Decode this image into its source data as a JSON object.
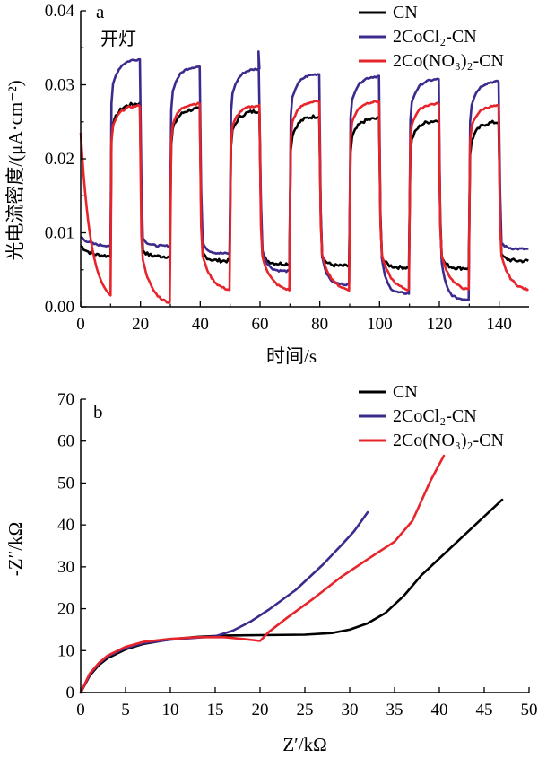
{
  "colors": {
    "CN": "#000000",
    "CoCl": "#3d2a8c",
    "CoNO": "#e8242b",
    "axis": "#000000"
  },
  "chart_data": [
    {
      "type": "line",
      "panel": "a",
      "annotation": "开灯",
      "xlabel": "时间/s",
      "ylabel": "光电流密度/(μA·cm⁻²)",
      "xlim": [
        0,
        150
      ],
      "ylim": [
        0,
        0.04
      ],
      "xticks": [
        "0",
        "20",
        "40",
        "60",
        "80",
        "100",
        "120",
        "140"
      ],
      "yticks": [
        "0.00",
        "0.01",
        "0.02",
        "0.03",
        "0.04"
      ],
      "legend": [
        "CN",
        "2CoCl₂-CN",
        "2Co(NO₃)₂-CN"
      ],
      "legend_position": "top-right",
      "cycles": {
        "on_start": [
          10,
          30,
          50,
          70,
          90,
          110,
          130
        ],
        "on_end": [
          20,
          40,
          60,
          80,
          100,
          120,
          140
        ]
      },
      "series": [
        {
          "name": "CN",
          "color_key": "CN",
          "on_levels": [
            0.0275,
            0.0268,
            0.0265,
            0.0258,
            0.0255,
            0.0252,
            0.025
          ],
          "off_levels": [
            0.0068,
            0.0062,
            0.0058,
            0.0055,
            0.0053,
            0.0052,
            0.0062
          ]
        },
        {
          "name": "2CoCl₂-CN",
          "color_key": "CoCl",
          "on_levels": [
            0.0335,
            0.0325,
            0.0322,
            0.0315,
            0.0312,
            0.0308,
            0.0305
          ],
          "off_levels": [
            0.0082,
            0.0072,
            0.0048,
            0.003,
            0.0018,
            0.001,
            0.0078
          ],
          "spike": {
            "x": 59.5,
            "y": 0.0345
          }
        },
        {
          "name": "2Co(NO₃)₂-CN",
          "color_key": "CoNO",
          "on_levels": [
            0.0272,
            0.0275,
            0.0272,
            0.0278,
            0.0278,
            0.0275,
            0.0272
          ],
          "off_levels": [
            0.0002,
            0.002,
            0.002,
            0.002,
            0.002,
            0.002,
            0.002
          ],
          "initial": 0.0235
        }
      ]
    },
    {
      "type": "line",
      "panel": "b",
      "xlabel": "Z′/kΩ",
      "ylabel": "-Z″/kΩ",
      "xlim": [
        0,
        50
      ],
      "ylim": [
        0,
        70
      ],
      "xticks": [
        "0",
        "5",
        "10",
        "15",
        "20",
        "25",
        "30",
        "35",
        "40",
        "45",
        "50"
      ],
      "yticks": [
        "0",
        "10",
        "20",
        "30",
        "40",
        "50",
        "60",
        "70"
      ],
      "legend": [
        "CN",
        "2CoCl₂-CN",
        "2Co(NO₃)₂-CN"
      ],
      "legend_position": "top-right",
      "series": [
        {
          "name": "CN",
          "color_key": "CN",
          "points": [
            [
              0,
              0
            ],
            [
              1,
              4
            ],
            [
              2,
              6.5
            ],
            [
              3,
              8.2
            ],
            [
              5,
              10.3
            ],
            [
              7,
              11.6
            ],
            [
              10,
              12.7
            ],
            [
              13,
              13.3
            ],
            [
              16,
              13.6
            ],
            [
              20,
              13.7
            ],
            [
              25,
              13.8
            ],
            [
              28,
              14.2
            ],
            [
              30,
              15
            ],
            [
              32,
              16.5
            ],
            [
              34,
              19
            ],
            [
              36,
              23
            ],
            [
              38,
              28
            ],
            [
              40,
              32
            ],
            [
              42,
              36
            ],
            [
              44,
              40
            ],
            [
              47,
              46
            ]
          ]
        },
        {
          "name": "2CoCl₂-CN",
          "color_key": "CoCl",
          "points": [
            [
              0,
              0
            ],
            [
              1,
              4.3
            ],
            [
              2,
              6.8
            ],
            [
              3,
              8.6
            ],
            [
              5,
              10.6
            ],
            [
              7,
              11.8
            ],
            [
              10,
              12.6
            ],
            [
              13,
              13.1
            ],
            [
              15,
              13.4
            ],
            [
              17,
              14.8
            ],
            [
              19,
              17
            ],
            [
              21,
              19.8
            ],
            [
              24,
              24.5
            ],
            [
              27,
              30.5
            ],
            [
              29,
              35
            ],
            [
              30.5,
              38.5
            ],
            [
              32,
              43
            ]
          ]
        },
        {
          "name": "2Co(NO₃)₂-CN",
          "color_key": "CoNO",
          "points": [
            [
              0,
              0
            ],
            [
              1,
              4.5
            ],
            [
              2,
              7
            ],
            [
              3,
              8.8
            ],
            [
              5,
              10.9
            ],
            [
              7,
              12.1
            ],
            [
              10,
              12.8
            ],
            [
              13,
              13.2
            ],
            [
              16,
              13.2
            ],
            [
              18.5,
              12.7
            ],
            [
              20,
              12.3
            ],
            [
              21,
              14.5
            ],
            [
              23,
              17.8
            ],
            [
              26,
              22.5
            ],
            [
              29,
              27.5
            ],
            [
              32,
              31.8
            ],
            [
              35,
              36
            ],
            [
              37,
              41
            ],
            [
              39,
              50.5
            ],
            [
              40.5,
              56.5
            ]
          ]
        }
      ]
    }
  ]
}
